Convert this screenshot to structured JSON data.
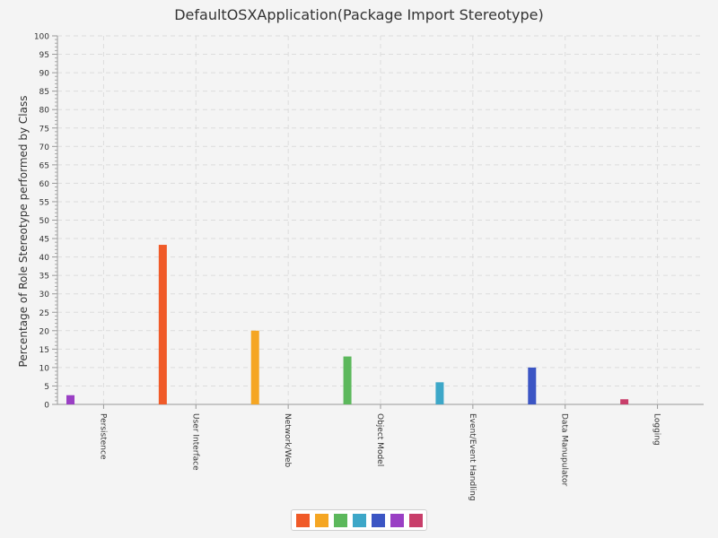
{
  "chart_data": {
    "type": "bar",
    "title": "DefaultOSXApplication(Package Import Stereotype)",
    "xlabel": "",
    "ylabel": "Percentage of Role Stereotype performed by Class",
    "ylim": [
      0,
      100
    ],
    "y_ticks": [
      "0",
      "5",
      "10",
      "15",
      "20",
      "25",
      "30",
      "35",
      "40",
      "45",
      "50",
      "55",
      "60",
      "65",
      "70",
      "75",
      "80",
      "85",
      "90",
      "95",
      "100"
    ],
    "grid": true,
    "legend": "bottom",
    "categories": [
      "Persistence",
      "User Interface",
      "Network/Web",
      "Object Model",
      "Event/Event Handling",
      "Data Manupulator",
      "Logging"
    ],
    "values": [
      2.5,
      43.3,
      20.0,
      13.0,
      6.0,
      10.0,
      1.4
    ],
    "colors": [
      "#9a3fc4",
      "#f05a28",
      "#f5a623",
      "#5cb85c",
      "#3da7c8",
      "#3b55c4",
      "#c83e6a"
    ],
    "legend_colors": [
      "#f05a28",
      "#f5a623",
      "#5cb85c",
      "#3da7c8",
      "#3b55c4",
      "#9a3fc4",
      "#c83e6a"
    ]
  }
}
